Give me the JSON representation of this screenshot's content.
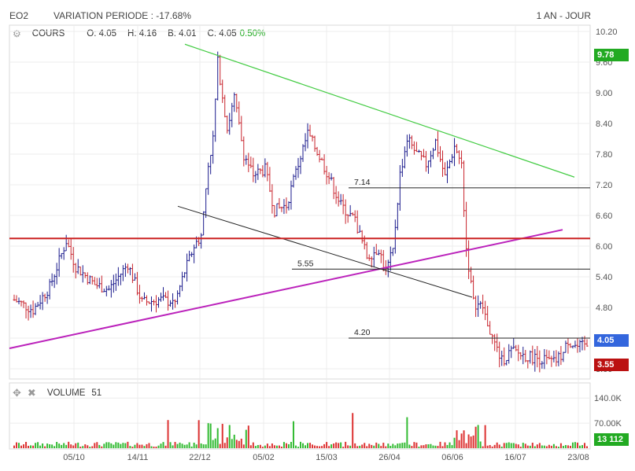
{
  "header": {
    "symbol": "EO2",
    "variation": "VARIATION PERIODE : -17.68%",
    "period": "1 AN - JOUR"
  },
  "price_legend": {
    "label": "COURS",
    "open": "O: 4.05",
    "high": "H: 4.16",
    "bid": "B: 4.01",
    "close": "C: 4.05",
    "change": "0.50%"
  },
  "volume_legend": {
    "label": "VOLUME",
    "value": "51"
  },
  "boxes": {
    "high_label": "9.78",
    "last_label": "4.05",
    "low_label": "3.55",
    "volume_label": "13 112"
  },
  "colors": {
    "up_bar": "#1a1a8c",
    "down_bar": "#c8232c",
    "trend_green": "#44cc44",
    "trend_magenta": "#bb22bb",
    "resistance_red": "#cc2222",
    "box_green": "#22aa22",
    "box_blue": "#3366dd",
    "box_red": "#bb1111"
  },
  "chart_data": {
    "type": "ohlc",
    "x_tick_labels": [
      "05/10",
      "14/11",
      "22/12",
      "05/02",
      "15/03",
      "26/04",
      "06/06",
      "16/07",
      "23/08"
    ],
    "y_tick_labels": [
      "10.20",
      "9.60",
      "9.00",
      "8.40",
      "7.80",
      "7.20",
      "6.60",
      "6.00",
      "5.40",
      "4.80",
      "4.20",
      "3.60"
    ],
    "ylim": [
      3.4,
      10.2
    ],
    "volume_tick_labels": [
      "140.0K",
      "70.00K"
    ],
    "volume_ylim": [
      0,
      180000
    ],
    "price_keyframes": [
      [
        0,
        4.95
      ],
      [
        8,
        4.75
      ],
      [
        15,
        5.2
      ],
      [
        22,
        6.1
      ],
      [
        26,
        5.6
      ],
      [
        34,
        5.25
      ],
      [
        40,
        5.15
      ],
      [
        48,
        5.65
      ],
      [
        54,
        4.9
      ],
      [
        62,
        4.95
      ],
      [
        68,
        4.9
      ],
      [
        72,
        5.5
      ],
      [
        76,
        6.0
      ],
      [
        79,
        6.2
      ],
      [
        82,
        7.6
      ],
      [
        84,
        8.1
      ],
      [
        86,
        9.6
      ],
      [
        90,
        8.3
      ],
      [
        93,
        8.9
      ],
      [
        97,
        7.8
      ],
      [
        101,
        7.4
      ],
      [
        106,
        7.5
      ],
      [
        110,
        6.7
      ],
      [
        115,
        6.8
      ],
      [
        120,
        7.6
      ],
      [
        124,
        8.2
      ],
      [
        128,
        7.85
      ],
      [
        133,
        7.35
      ],
      [
        138,
        6.8
      ],
      [
        144,
        6.5
      ],
      [
        149,
        5.8
      ],
      [
        154,
        5.95
      ],
      [
        157,
        5.5
      ],
      [
        160,
        5.9
      ],
      [
        163,
        7.4
      ],
      [
        166,
        8.1
      ],
      [
        170,
        7.8
      ],
      [
        174,
        7.6
      ],
      [
        178,
        8.05
      ],
      [
        182,
        7.35
      ],
      [
        186,
        7.95
      ],
      [
        189,
        7.6
      ],
      [
        191,
        5.95
      ],
      [
        194,
        4.9
      ],
      [
        198,
        4.8
      ],
      [
        202,
        4.2
      ],
      [
        206,
        3.75
      ],
      [
        210,
        3.95
      ],
      [
        216,
        3.85
      ],
      [
        222,
        3.8
      ],
      [
        228,
        3.72
      ],
      [
        232,
        3.9
      ],
      [
        234,
        4.15
      ],
      [
        238,
        4.02
      ],
      [
        242,
        4.05
      ]
    ],
    "annotations": [
      {
        "label": "7.14",
        "level": 7.14
      },
      {
        "label": "5.55",
        "level": 5.55
      },
      {
        "label": "4.20",
        "level": 4.2
      }
    ],
    "resistance_level": 6.15,
    "grid": true
  }
}
